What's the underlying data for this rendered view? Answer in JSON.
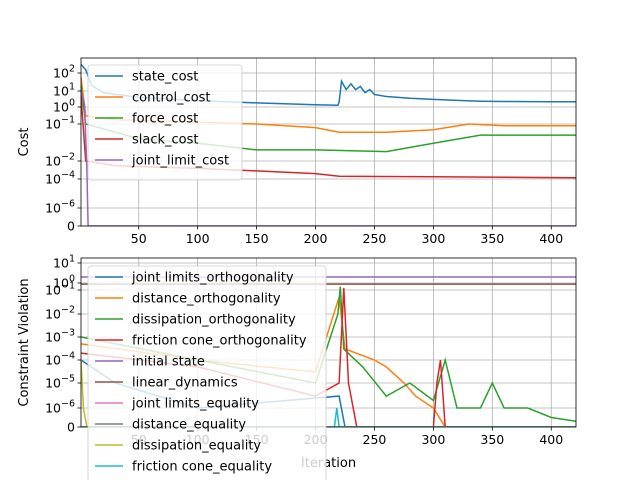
{
  "chart_data": [
    {
      "type": "line",
      "ylabel": "Cost",
      "xlabel": "",
      "yscale": "symlog",
      "xlim": [
        1,
        421
      ],
      "ylim": [
        0,
        1000
      ],
      "grid": true,
      "legend_position": "upper-left",
      "x_ticks": [
        50,
        100,
        150,
        200,
        250,
        300,
        350,
        400
      ],
      "y_ticks": [
        "0",
        "10^-6",
        "10^-4",
        "10^-2",
        "10^-1",
        "10^0",
        "10^1",
        "10^2"
      ],
      "series": [
        {
          "name": "state_cost",
          "color": "#1f77b4",
          "points": [
            [
              1,
              300
            ],
            [
              5,
              150
            ],
            [
              10,
              20
            ],
            [
              20,
              8
            ],
            [
              50,
              4
            ],
            [
              100,
              2.5
            ],
            [
              150,
              1.8
            ],
            [
              200,
              1.4
            ],
            [
              219,
              1.3
            ],
            [
              220,
              2
            ],
            [
              222,
              35
            ],
            [
              226,
              12
            ],
            [
              230,
              25
            ],
            [
              234,
              12
            ],
            [
              238,
              18
            ],
            [
              242,
              8
            ],
            [
              246,
              12
            ],
            [
              250,
              6
            ],
            [
              260,
              4.5
            ],
            [
              280,
              3.5
            ],
            [
              300,
              3
            ],
            [
              320,
              2.6
            ],
            [
              340,
              2.3
            ],
            [
              360,
              2.2
            ],
            [
              400,
              2.1
            ],
            [
              421,
              2.1
            ]
          ]
        },
        {
          "name": "control_cost",
          "color": "#ff7f0e",
          "points": [
            [
              1,
              60
            ],
            [
              5,
              0.3
            ],
            [
              30,
              0.18
            ],
            [
              100,
              0.13
            ],
            [
              150,
              0.1
            ],
            [
              200,
              0.08
            ],
            [
              220,
              0.06
            ],
            [
              260,
              0.06
            ],
            [
              300,
              0.07
            ],
            [
              330,
              0.1
            ],
            [
              360,
              0.09
            ],
            [
              421,
              0.09
            ]
          ]
        },
        {
          "name": "force_cost",
          "color": "#2ca02c",
          "points": [
            [
              1,
              20
            ],
            [
              5,
              0.1
            ],
            [
              50,
              0.04
            ],
            [
              100,
              0.03
            ],
            [
              150,
              0.02
            ],
            [
              200,
              0.02
            ],
            [
              260,
              0.018
            ],
            [
              300,
              0.03
            ],
            [
              340,
              0.05
            ],
            [
              421,
              0.05
            ]
          ]
        },
        {
          "name": "slack_cost",
          "color": "#d62728",
          "points": [
            [
              1,
              5
            ],
            [
              5,
              0.01
            ],
            [
              30,
              0.003
            ],
            [
              100,
              0.0015
            ],
            [
              150,
              0.0008
            ],
            [
              200,
              0.0004
            ],
            [
              220,
              0.0002
            ],
            [
              300,
              0.00018
            ],
            [
              360,
              0.00016
            ],
            [
              421,
              0.00014
            ]
          ]
        },
        {
          "name": "joint_limit_cost",
          "color": "#9467bd",
          "points": [
            [
              1,
              10
            ],
            [
              4,
              1.5
            ],
            [
              6,
              0.001
            ],
            [
              7,
              0
            ],
            [
              421,
              0
            ]
          ]
        }
      ]
    },
    {
      "type": "line",
      "ylabel": "Constraint Violation",
      "xlabel": "Iteration",
      "yscale": "symlog",
      "xlim": [
        1,
        421
      ],
      "ylim": [
        0,
        10
      ],
      "grid": true,
      "legend_position": "upper-left",
      "x_ticks": [
        50,
        100,
        150,
        200,
        250,
        300,
        350,
        400
      ],
      "y_ticks": [
        "0",
        "10^-6",
        "10^-5",
        "10^-4",
        "10^-3",
        "10^-2",
        "10^-1",
        "10^0",
        "10^1"
      ],
      "series": [
        {
          "name": "joint limits_orthogonality",
          "color": "#1f77b4",
          "points": [
            [
              1,
              0.0001
            ],
            [
              30,
              1e-05
            ],
            [
              100,
              1e-06
            ],
            [
              220,
              3e-06
            ],
            [
              225,
              0
            ],
            [
              421,
              0
            ]
          ]
        },
        {
          "name": "distance_orthogonality",
          "color": "#ff7f0e",
          "points": [
            [
              1,
              0.0005
            ],
            [
              100,
              0.0001
            ],
            [
              200,
              3e-05
            ],
            [
              220,
              0.05
            ],
            [
              225,
              0.0003
            ],
            [
              250,
              0.0001
            ],
            [
              260,
              5e-05
            ],
            [
              275,
              1e-05
            ],
            [
              285,
              3e-06
            ],
            [
              300,
              1e-06
            ],
            [
              310,
              0
            ],
            [
              421,
              0
            ]
          ]
        },
        {
          "name": "dissipation_orthogonality",
          "color": "#2ca02c",
          "points": [
            [
              1,
              0.001
            ],
            [
              100,
              0.0001
            ],
            [
              200,
              1e-05
            ],
            [
              219,
              0.01
            ],
            [
              221,
              0.3
            ],
            [
              224,
              0.0003
            ],
            [
              240,
              5e-05
            ],
            [
              260,
              3e-06
            ],
            [
              280,
              1e-05
            ],
            [
              300,
              2e-06
            ],
            [
              310,
              0.0001
            ],
            [
              320,
              1e-06
            ],
            [
              340,
              1e-06
            ],
            [
              350,
              1e-05
            ],
            [
              360,
              1e-06
            ],
            [
              380,
              1e-06
            ],
            [
              400,
              5e-07
            ],
            [
              421,
              3e-07
            ]
          ]
        },
        {
          "name": "friction cone_orthogonality",
          "color": "#d62728",
          "points": [
            [
              1,
              0.0002
            ],
            [
              100,
              5e-05
            ],
            [
              200,
              3e-06
            ],
            [
              220,
              1e-05
            ],
            [
              224,
              0.2
            ],
            [
              228,
              1e-05
            ],
            [
              235,
              0
            ],
            [
              300,
              0
            ],
            [
              303,
              1e-05
            ],
            [
              306,
              0.0001
            ],
            [
              310,
              0
            ],
            [
              421,
              0
            ]
          ]
        },
        {
          "name": "initial state",
          "color": "#9467bd",
          "points": [
            [
              1,
              2
            ],
            [
              421,
              2
            ]
          ]
        },
        {
          "name": "linear_dynamics",
          "color": "#8c564b",
          "points": [
            [
              1,
              0.7
            ],
            [
              421,
              0.7
            ]
          ]
        },
        {
          "name": "joint limits_equality",
          "color": "#e377c2",
          "points": [
            [
              1,
              0
            ],
            [
              421,
              0
            ]
          ]
        },
        {
          "name": "distance_equality",
          "color": "#7f7f7f",
          "points": [
            [
              1,
              0
            ],
            [
              421,
              0
            ]
          ]
        },
        {
          "name": "dissipation_equality",
          "color": "#bcbd22",
          "points": [
            [
              1,
              0.0001
            ],
            [
              3,
              1e-06
            ],
            [
              6,
              0
            ],
            [
              421,
              0
            ]
          ]
        },
        {
          "name": "friction cone_equality",
          "color": "#17becf",
          "points": [
            [
              1,
              0
            ],
            [
              216,
              0
            ],
            [
              218,
              1e-06
            ],
            [
              220,
              0
            ],
            [
              421,
              0
            ]
          ]
        }
      ]
    }
  ]
}
